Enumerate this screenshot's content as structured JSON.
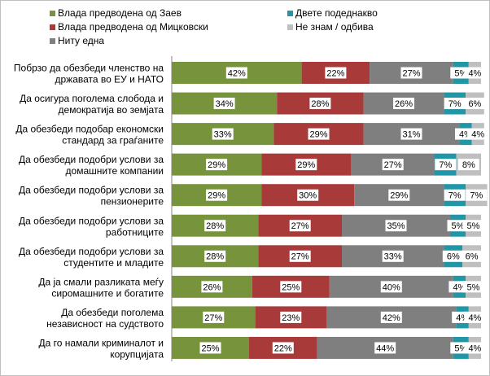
{
  "chart_data": {
    "type": "bar",
    "orientation": "horizontal",
    "stacked": true,
    "legend": "top",
    "grid": false,
    "xlim": [
      0,
      100
    ],
    "series": [
      {
        "name": "Влада предводена од Заев",
        "color": "#77933c",
        "values": [
          42,
          34,
          33,
          29,
          29,
          28,
          28,
          26,
          27,
          25
        ]
      },
      {
        "name": "Влада предводена од Мицковски",
        "color": "#a83a3a",
        "values": [
          22,
          28,
          29,
          29,
          30,
          27,
          27,
          25,
          23,
          22
        ]
      },
      {
        "name": "Ниту една",
        "color": "#7f7f7f",
        "values": [
          27,
          26,
          31,
          27,
          29,
          35,
          33,
          40,
          42,
          44
        ]
      },
      {
        "name": "Двете подеднакво",
        "color": "#2196a6",
        "values": [
          5,
          7,
          4,
          7,
          7,
          5,
          6,
          4,
          4,
          5
        ]
      },
      {
        "name": "Не знам / одбива",
        "color": "#bfbfbf",
        "values": [
          4,
          6,
          4,
          8,
          7,
          5,
          6,
          5,
          4,
          4
        ]
      }
    ],
    "categories": [
      [
        "Побрзо да обезбеди членство на",
        "државата во ЕУ и НАТО"
      ],
      [
        "Да осигура поголема слобода и",
        "демократија во земјата"
      ],
      [
        "Да обезбеди  подобар економски",
        "стандард за граѓаните"
      ],
      [
        "Да обезбеди подобри услови за",
        "домашните компании"
      ],
      [
        "Да обезбеди подобри услови за",
        "пензионерите"
      ],
      [
        "Да обезбеди подобри услови за",
        "работниците"
      ],
      [
        "Да обезбеди подобри услови за",
        "студентите и младите"
      ],
      [
        "Да ја смали разликата меѓу",
        "сиромашните и богатите"
      ],
      [
        "Да обезбеди поголема",
        "независност на судството"
      ],
      [
        "Да го  намали криминалот и",
        "корупцијата"
      ]
    ]
  }
}
